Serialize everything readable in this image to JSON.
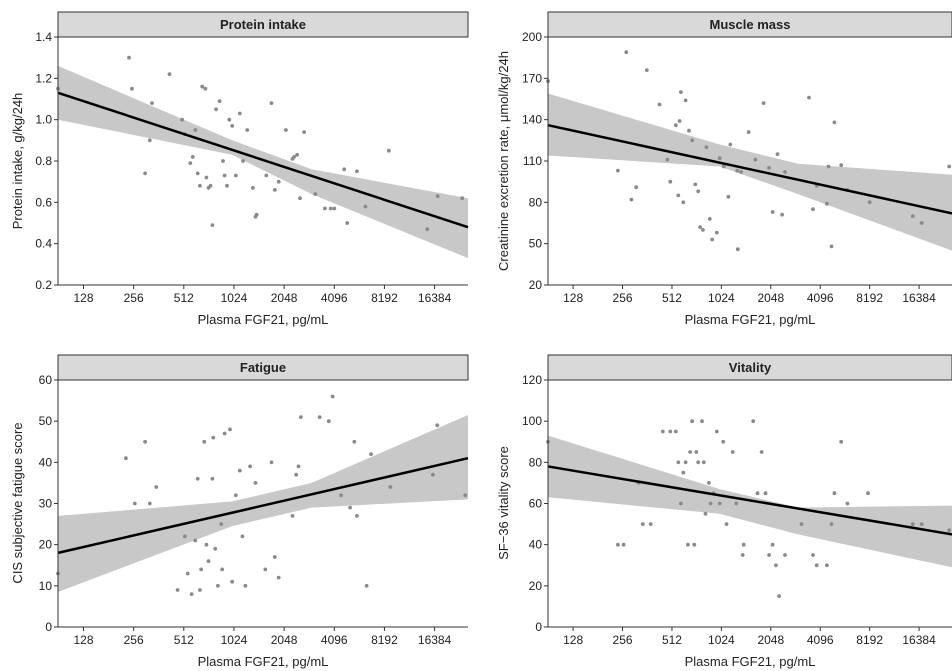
{
  "chart_data": [
    {
      "type": "scatter",
      "title": "Protein intake",
      "xlabel": "Plasma FGF21, pg/mL",
      "ylabel": "Protein intake, g/kg/24h",
      "x_scale": "log2",
      "xlim": [
        90,
        26000
      ],
      "xticks": [
        128,
        256,
        512,
        1024,
        2048,
        4096,
        8192,
        16384
      ],
      "xtick_labels": [
        "128",
        "256",
        "512",
        "1024",
        "2048",
        "4096",
        "8192",
        "16384"
      ],
      "ylim": [
        0.2,
        1.4
      ],
      "yticks": [
        0.2,
        0.4,
        0.6,
        0.8,
        1.0,
        1.2,
        1.4
      ],
      "ytick_labels": [
        "0.2",
        "0.4",
        "0.6",
        "0.8",
        "1.0",
        "1.2",
        "1.4"
      ],
      "points": [
        [
          90,
          1.15
        ],
        [
          240,
          1.3
        ],
        [
          250,
          1.15
        ],
        [
          300,
          0.74
        ],
        [
          320,
          0.9
        ],
        [
          330,
          1.08
        ],
        [
          420,
          1.22
        ],
        [
          500,
          1.0
        ],
        [
          520,
          0.93
        ],
        [
          560,
          0.79
        ],
        [
          580,
          0.82
        ],
        [
          600,
          0.95
        ],
        [
          620,
          0.74
        ],
        [
          640,
          0.68
        ],
        [
          660,
          1.16
        ],
        [
          690,
          1.15
        ],
        [
          700,
          0.72
        ],
        [
          720,
          0.67
        ],
        [
          740,
          0.68
        ],
        [
          760,
          0.49
        ],
        [
          800,
          1.05
        ],
        [
          840,
          1.09
        ],
        [
          880,
          0.8
        ],
        [
          900,
          0.73
        ],
        [
          930,
          0.68
        ],
        [
          960,
          1.0
        ],
        [
          1000,
          0.97
        ],
        [
          1050,
          0.73
        ],
        [
          1110,
          1.03
        ],
        [
          1160,
          0.8
        ],
        [
          1230,
          0.95
        ],
        [
          1330,
          0.67
        ],
        [
          1380,
          0.53
        ],
        [
          1400,
          0.54
        ],
        [
          1600,
          0.73
        ],
        [
          1720,
          1.08
        ],
        [
          1800,
          0.66
        ],
        [
          1900,
          0.7
        ],
        [
          2100,
          0.95
        ],
        [
          2300,
          0.81
        ],
        [
          2350,
          0.82
        ],
        [
          2450,
          0.83
        ],
        [
          2550,
          0.62
        ],
        [
          2700,
          0.94
        ],
        [
          3150,
          0.64
        ],
        [
          3600,
          0.57
        ],
        [
          3900,
          0.57
        ],
        [
          4100,
          0.57
        ],
        [
          4700,
          0.76
        ],
        [
          4900,
          0.5
        ],
        [
          5600,
          0.75
        ],
        [
          6300,
          0.58
        ],
        [
          8700,
          0.85
        ],
        [
          14800,
          0.47
        ],
        [
          17100,
          0.63
        ],
        [
          24000,
          0.62
        ]
      ],
      "fit": {
        "x": [
          90,
          26000
        ],
        "y": [
          1.13,
          0.48
        ]
      },
      "ci_upper": [
        [
          90,
          1.26
        ],
        [
          1000,
          0.9
        ],
        [
          3000,
          0.76
        ],
        [
          26000,
          0.62
        ]
      ],
      "ci_lower": [
        [
          90,
          1.0
        ],
        [
          1000,
          0.83
        ],
        [
          3000,
          0.64
        ],
        [
          26000,
          0.33
        ]
      ]
    },
    {
      "type": "scatter",
      "title": "Muscle mass",
      "xlabel": "Plasma FGF21, pg/mL",
      "ylabel": "Creatinine excretion rate, μmol/kg/24h",
      "x_scale": "log2",
      "xlim": [
        90,
        26000
      ],
      "xticks": [
        128,
        256,
        512,
        1024,
        2048,
        4096,
        8192,
        16384
      ],
      "xtick_labels": [
        "128",
        "256",
        "512",
        "1024",
        "2048",
        "4096",
        "8192",
        "16384"
      ],
      "ylim": [
        20,
        200
      ],
      "yticks": [
        20,
        50,
        80,
        110,
        140,
        170,
        200
      ],
      "ytick_labels": [
        "20",
        "50",
        "80",
        "110",
        "140",
        "170",
        "200"
      ],
      "points": [
        [
          90,
          168
        ],
        [
          240,
          103
        ],
        [
          270,
          189
        ],
        [
          290,
          82
        ],
        [
          310,
          91
        ],
        [
          360,
          176
        ],
        [
          430,
          151
        ],
        [
          480,
          111
        ],
        [
          500,
          95
        ],
        [
          540,
          136
        ],
        [
          560,
          85
        ],
        [
          570,
          139
        ],
        [
          580,
          160
        ],
        [
          600,
          80
        ],
        [
          620,
          154
        ],
        [
          650,
          132
        ],
        [
          680,
          125
        ],
        [
          710,
          93
        ],
        [
          740,
          88
        ],
        [
          760,
          62
        ],
        [
          790,
          60
        ],
        [
          830,
          120
        ],
        [
          870,
          68
        ],
        [
          900,
          53
        ],
        [
          960,
          58
        ],
        [
          1000,
          112
        ],
        [
          1060,
          106
        ],
        [
          1130,
          84
        ],
        [
          1160,
          122
        ],
        [
          1280,
          103
        ],
        [
          1290,
          46
        ],
        [
          1350,
          102
        ],
        [
          1500,
          131
        ],
        [
          1650,
          111
        ],
        [
          1850,
          152
        ],
        [
          2000,
          105
        ],
        [
          2100,
          73
        ],
        [
          2250,
          115
        ],
        [
          2400,
          71
        ],
        [
          2500,
          102
        ],
        [
          3500,
          156
        ],
        [
          3700,
          75
        ],
        [
          3900,
          92
        ],
        [
          4500,
          79
        ],
        [
          4600,
          106
        ],
        [
          4800,
          48
        ],
        [
          5000,
          138
        ],
        [
          5500,
          107
        ],
        [
          6000,
          89
        ],
        [
          8200,
          80
        ],
        [
          15000,
          70
        ],
        [
          17000,
          65
        ],
        [
          25000,
          106
        ]
      ],
      "fit": {
        "x": [
          90,
          26000
        ],
        "y": [
          136,
          72
        ]
      },
      "ci_upper": [
        [
          90,
          159
        ],
        [
          1000,
          122
        ],
        [
          3000,
          108
        ],
        [
          26000,
          100
        ]
      ],
      "ci_lower": [
        [
          90,
          114
        ],
        [
          1000,
          106
        ],
        [
          3000,
          86
        ],
        [
          26000,
          45
        ]
      ]
    },
    {
      "type": "scatter",
      "title": "Fatigue",
      "xlabel": "Plasma FGF21, pg/mL",
      "ylabel": "CIS subjective fatigue score",
      "x_scale": "log2",
      "xlim": [
        90,
        26000
      ],
      "xticks": [
        128,
        256,
        512,
        1024,
        2048,
        4096,
        8192,
        16384
      ],
      "xtick_labels": [
        "128",
        "256",
        "512",
        "1024",
        "2048",
        "4096",
        "8192",
        "16384"
      ],
      "ylim": [
        0,
        60
      ],
      "yticks": [
        0,
        10,
        20,
        30,
        40,
        50,
        60
      ],
      "ytick_labels": [
        "0",
        "10",
        "20",
        "30",
        "40",
        "50",
        "60"
      ],
      "points": [
        [
          90,
          13
        ],
        [
          230,
          41
        ],
        [
          260,
          30
        ],
        [
          300,
          45
        ],
        [
          320,
          30
        ],
        [
          350,
          34
        ],
        [
          470,
          9
        ],
        [
          520,
          22
        ],
        [
          540,
          13
        ],
        [
          570,
          8
        ],
        [
          600,
          21
        ],
        [
          620,
          36
        ],
        [
          640,
          9
        ],
        [
          650,
          14
        ],
        [
          680,
          45
        ],
        [
          700,
          20
        ],
        [
          720,
          16
        ],
        [
          760,
          36
        ],
        [
          770,
          46
        ],
        [
          790,
          19
        ],
        [
          820,
          10
        ],
        [
          860,
          25
        ],
        [
          870,
          14
        ],
        [
          900,
          47
        ],
        [
          970,
          48
        ],
        [
          1000,
          11
        ],
        [
          1050,
          32
        ],
        [
          1110,
          38
        ],
        [
          1150,
          22
        ],
        [
          1200,
          10
        ],
        [
          1280,
          39
        ],
        [
          1380,
          35
        ],
        [
          1580,
          14
        ],
        [
          1720,
          40
        ],
        [
          1800,
          17
        ],
        [
          1900,
          12
        ],
        [
          2300,
          27
        ],
        [
          2420,
          37
        ],
        [
          2500,
          39
        ],
        [
          2580,
          51
        ],
        [
          3350,
          51
        ],
        [
          3800,
          50
        ],
        [
          4000,
          56
        ],
        [
          4500,
          32
        ],
        [
          5100,
          29
        ],
        [
          5400,
          45
        ],
        [
          5600,
          27
        ],
        [
          6400,
          10
        ],
        [
          6800,
          42
        ],
        [
          8900,
          34
        ],
        [
          16000,
          37
        ],
        [
          17000,
          49
        ],
        [
          25000,
          32
        ]
      ],
      "fit": {
        "x": [
          90,
          26000
        ],
        "y": [
          18,
          41
        ]
      },
      "ci_upper": [
        [
          90,
          27
        ],
        [
          1000,
          30.5
        ],
        [
          3000,
          35
        ],
        [
          26000,
          51.5
        ]
      ],
      "ci_lower": [
        [
          90,
          8.5
        ],
        [
          1000,
          24.5
        ],
        [
          3000,
          29
        ],
        [
          26000,
          31
        ]
      ]
    },
    {
      "type": "scatter",
      "title": "Vitality",
      "xlabel": "Plasma FGF21, pg/mL",
      "ylabel": "SF−36 vitality score",
      "x_scale": "log2",
      "xlim": [
        90,
        26000
      ],
      "xticks": [
        128,
        256,
        512,
        1024,
        2048,
        4096,
        8192,
        16384
      ],
      "xtick_labels": [
        "128",
        "256",
        "512",
        "1024",
        "2048",
        "4096",
        "8192",
        "16384"
      ],
      "ylim": [
        0,
        120
      ],
      "yticks": [
        0,
        20,
        40,
        60,
        80,
        100,
        120
      ],
      "ytick_labels": [
        "0",
        "20",
        "40",
        "60",
        "80",
        "100",
        "120"
      ],
      "points": [
        [
          90,
          90
        ],
        [
          240,
          40
        ],
        [
          260,
          40
        ],
        [
          320,
          70
        ],
        [
          340,
          50
        ],
        [
          380,
          50
        ],
        [
          450,
          95
        ],
        [
          500,
          95
        ],
        [
          540,
          95
        ],
        [
          560,
          80
        ],
        [
          580,
          60
        ],
        [
          600,
          75
        ],
        [
          620,
          80
        ],
        [
          640,
          40
        ],
        [
          660,
          85
        ],
        [
          680,
          100
        ],
        [
          700,
          40
        ],
        [
          720,
          85
        ],
        [
          740,
          80
        ],
        [
          780,
          100
        ],
        [
          800,
          80
        ],
        [
          820,
          55
        ],
        [
          860,
          70
        ],
        [
          880,
          60
        ],
        [
          920,
          65
        ],
        [
          960,
          95
        ],
        [
          1000,
          60
        ],
        [
          1050,
          90
        ],
        [
          1100,
          50
        ],
        [
          1200,
          85
        ],
        [
          1260,
          60
        ],
        [
          1380,
          35
        ],
        [
          1400,
          40
        ],
        [
          1600,
          100
        ],
        [
          1700,
          65
        ],
        [
          1800,
          85
        ],
        [
          1900,
          65
        ],
        [
          2000,
          35
        ],
        [
          2100,
          40
        ],
        [
          2200,
          30
        ],
        [
          2300,
          15
        ],
        [
          2500,
          35
        ],
        [
          3150,
          50
        ],
        [
          3700,
          35
        ],
        [
          3900,
          30
        ],
        [
          4500,
          30
        ],
        [
          4800,
          50
        ],
        [
          5000,
          65
        ],
        [
          5500,
          90
        ],
        [
          6000,
          60
        ],
        [
          8000,
          65
        ],
        [
          15000,
          50
        ],
        [
          17000,
          50
        ],
        [
          25000,
          47
        ]
      ],
      "fit": {
        "x": [
          90,
          26000
        ],
        "y": [
          78,
          45
        ]
      },
      "ci_upper": [
        [
          90,
          93
        ],
        [
          1000,
          67
        ],
        [
          3000,
          58
        ],
        [
          26000,
          59
        ]
      ],
      "ci_lower": [
        [
          90,
          63
        ],
        [
          1000,
          55
        ],
        [
          3000,
          45
        ],
        [
          26000,
          29
        ]
      ]
    }
  ]
}
